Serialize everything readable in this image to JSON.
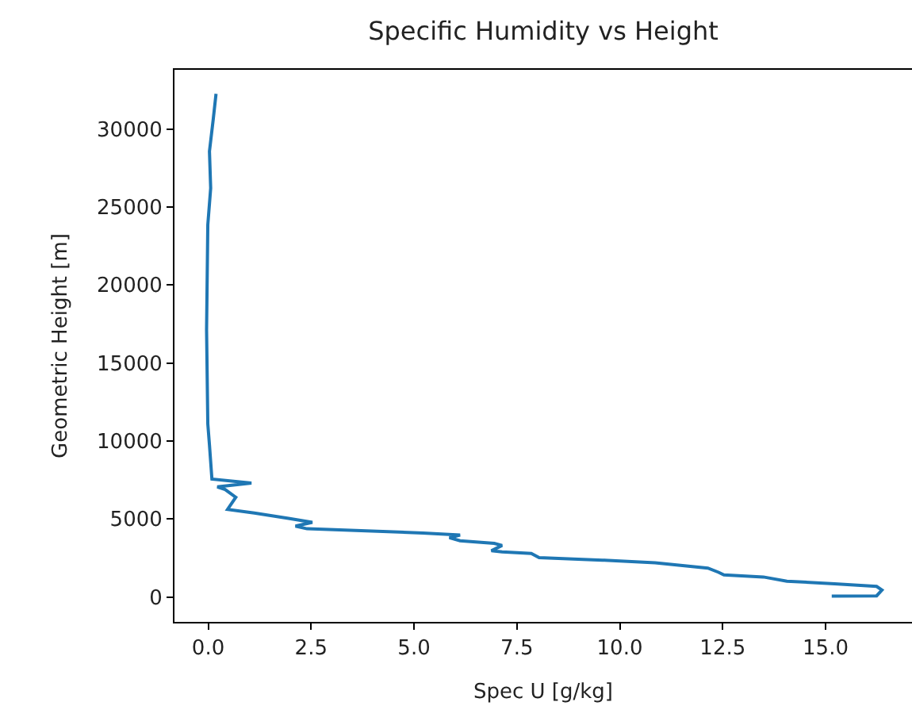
{
  "chart_data": {
    "type": "line",
    "title": "Specific Humidity vs Height",
    "xlabel": "Spec U [g/kg]",
    "ylabel": "Geometric Height [m]",
    "xlim": [
      -0.82,
      17.1
    ],
    "xticks": [
      {
        "value": 0,
        "label": "0.0"
      },
      {
        "value": 2.5,
        "label": "2.5"
      },
      {
        "value": 5,
        "label": "5.0"
      },
      {
        "value": 7.5,
        "label": "7.5"
      },
      {
        "value": 10,
        "label": "10.0"
      },
      {
        "value": 12.5,
        "label": "12.5"
      },
      {
        "value": 15,
        "label": "15.0"
      }
    ],
    "ylim": [
      -1600,
      33800
    ],
    "yticks": [
      0,
      5000,
      10000,
      15000,
      20000,
      25000,
      30000
    ],
    "series": [
      {
        "color": "#1f77b4",
        "x": [
          15.15,
          16.24,
          16.37,
          16.24,
          15.22,
          14.06,
          13.49,
          12.53,
          12.4,
          12.14,
          10.86,
          9.58,
          8.04,
          7.85,
          7.14,
          6.88,
          7.14,
          6.95,
          6.12,
          5.86,
          6.12,
          5.22,
          2.4,
          2.12,
          2.53,
          1.95,
          1.12,
          0.47,
          0.67,
          0.41,
          0.22,
          1.05,
          0.09,
          0.03,
          -0.01,
          -0.04,
          -0.01,
          0.06,
          0.03,
          0.12,
          0.19
        ],
        "values": [
          50,
          70,
          440,
          675,
          845,
          1010,
          1280,
          1410,
          1580,
          1850,
          2190,
          2360,
          2520,
          2790,
          2890,
          2960,
          3300,
          3430,
          3600,
          3800,
          3970,
          4100,
          4370,
          4540,
          4780,
          5040,
          5380,
          5610,
          6390,
          6890,
          7060,
          7300,
          7560,
          9750,
          11090,
          17140,
          23860,
          26210,
          28570,
          30580,
          32260
        ]
      }
    ]
  }
}
